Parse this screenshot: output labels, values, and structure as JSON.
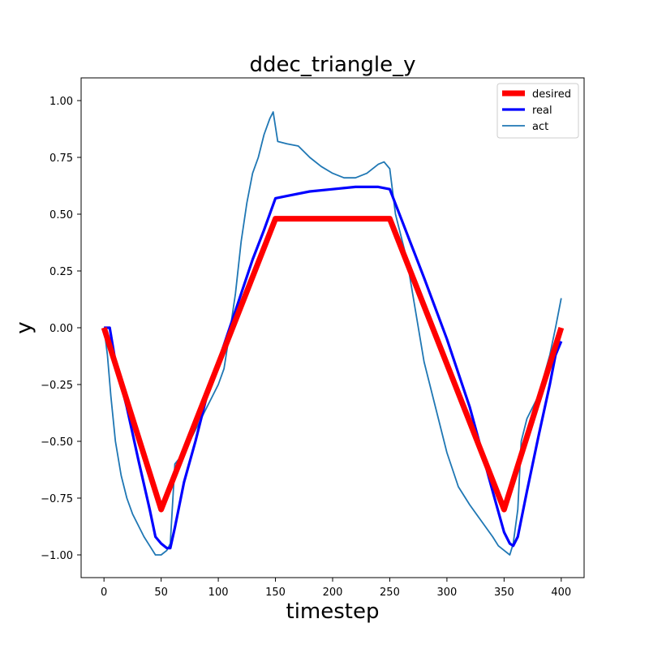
{
  "chart_data": {
    "type": "line",
    "title": "ddec_triangle_y",
    "xlabel": "timestep",
    "ylabel": "y",
    "xlim": [
      -20,
      420
    ],
    "ylim": [
      -1.1,
      1.1
    ],
    "xticks": [
      0,
      50,
      100,
      150,
      200,
      250,
      300,
      350,
      400
    ],
    "xtick_labels": [
      "0",
      "50",
      "100",
      "150",
      "200",
      "250",
      "300",
      "350",
      "400"
    ],
    "yticks": [
      -1.0,
      -0.75,
      -0.5,
      -0.25,
      0.0,
      0.25,
      0.5,
      0.75,
      1.0
    ],
    "ytick_labels": [
      "−1.00",
      "−0.75",
      "−0.50",
      "−0.25",
      "0.00",
      "0.25",
      "0.50",
      "0.75",
      "1.00"
    ],
    "grid": false,
    "legend_position": "top-right",
    "series": [
      {
        "name": "desired",
        "color": "#ff0000",
        "x": [
          0,
          50,
          150,
          250,
          350,
          400
        ],
        "y": [
          0.0,
          -0.8,
          0.48,
          0.48,
          -0.8,
          0.0
        ]
      },
      {
        "name": "real",
        "color": "#0000ff",
        "x": [
          0,
          5,
          10,
          20,
          30,
          40,
          45,
          50,
          55,
          58,
          62,
          70,
          80,
          90,
          100,
          110,
          120,
          130,
          140,
          145,
          150,
          160,
          180,
          200,
          220,
          240,
          250,
          260,
          270,
          280,
          300,
          320,
          340,
          350,
          355,
          358,
          362,
          370,
          380,
          390,
          395,
          400
        ],
        "y": [
          0.0,
          0.0,
          -0.15,
          -0.35,
          -0.58,
          -0.8,
          -0.92,
          -0.95,
          -0.97,
          -0.97,
          -0.88,
          -0.68,
          -0.5,
          -0.3,
          -0.15,
          0.0,
          0.15,
          0.3,
          0.43,
          0.5,
          0.57,
          0.58,
          0.6,
          0.61,
          0.62,
          0.62,
          0.61,
          0.48,
          0.35,
          0.22,
          -0.05,
          -0.35,
          -0.72,
          -0.9,
          -0.95,
          -0.96,
          -0.92,
          -0.72,
          -0.48,
          -0.25,
          -0.12,
          -0.06
        ]
      },
      {
        "name": "act",
        "color": "#1f77b4",
        "x": [
          0,
          3,
          6,
          10,
          15,
          20,
          25,
          30,
          35,
          40,
          45,
          50,
          55,
          58,
          62,
          70,
          80,
          90,
          100,
          105,
          110,
          115,
          120,
          125,
          130,
          135,
          140,
          145,
          148,
          152,
          160,
          170,
          180,
          190,
          200,
          210,
          220,
          230,
          240,
          245,
          250,
          255,
          260,
          265,
          270,
          275,
          280,
          290,
          300,
          310,
          320,
          330,
          340,
          345,
          350,
          355,
          358,
          362,
          365,
          370,
          380,
          390,
          395,
          400
        ],
        "y": [
          0.0,
          -0.12,
          -0.3,
          -0.5,
          -0.65,
          -0.75,
          -0.82,
          -0.87,
          -0.92,
          -0.96,
          -1.0,
          -1.0,
          -0.98,
          -0.95,
          -0.6,
          -0.55,
          -0.45,
          -0.35,
          -0.25,
          -0.18,
          -0.02,
          0.15,
          0.38,
          0.55,
          0.68,
          0.75,
          0.85,
          0.92,
          0.95,
          0.82,
          0.81,
          0.8,
          0.75,
          0.71,
          0.68,
          0.66,
          0.66,
          0.68,
          0.72,
          0.73,
          0.7,
          0.5,
          0.4,
          0.3,
          0.15,
          0.0,
          -0.15,
          -0.35,
          -0.55,
          -0.7,
          -0.78,
          -0.85,
          -0.92,
          -0.96,
          -0.98,
          -1.0,
          -0.95,
          -0.8,
          -0.5,
          -0.4,
          -0.3,
          -0.12,
          0.0,
          0.13
        ]
      }
    ]
  }
}
